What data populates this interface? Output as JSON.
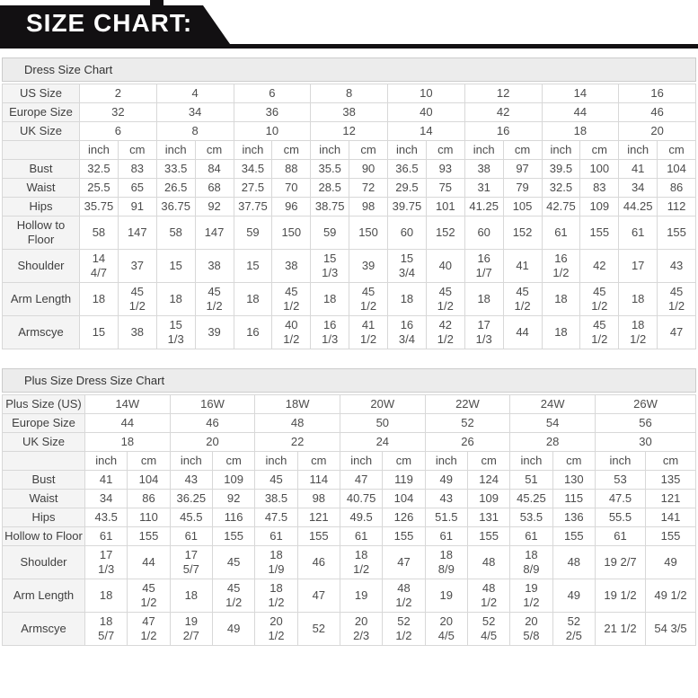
{
  "banner": {
    "title": "SIZE CHART:"
  },
  "tables": [
    {
      "title": "Dress Size Chart",
      "unit_headers": [
        "inch",
        "cm"
      ],
      "size_rows": [
        {
          "label": "US Size",
          "values": [
            "2",
            "4",
            "6",
            "8",
            "10",
            "12",
            "14",
            "16"
          ]
        },
        {
          "label": "Europe Size",
          "values": [
            "32",
            "34",
            "36",
            "38",
            "40",
            "42",
            "44",
            "46"
          ]
        },
        {
          "label": "UK Size",
          "values": [
            "6",
            "8",
            "10",
            "12",
            "14",
            "16",
            "18",
            "20"
          ]
        }
      ],
      "measure_rows": [
        {
          "label": "Bust",
          "values": [
            "32.5",
            "83",
            "33.5",
            "84",
            "34.5",
            "88",
            "35.5",
            "90",
            "36.5",
            "93",
            "38",
            "97",
            "39.5",
            "100",
            "41",
            "104"
          ]
        },
        {
          "label": "Waist",
          "values": [
            "25.5",
            "65",
            "26.5",
            "68",
            "27.5",
            "70",
            "28.5",
            "72",
            "29.5",
            "75",
            "31",
            "79",
            "32.5",
            "83",
            "34",
            "86"
          ]
        },
        {
          "label": "Hips",
          "values": [
            "35.75",
            "91",
            "36.75",
            "92",
            "37.75",
            "96",
            "38.75",
            "98",
            "39.75",
            "101",
            "41.25",
            "105",
            "42.75",
            "109",
            "44.25",
            "112"
          ]
        },
        {
          "label": "Hollow to Floor",
          "values": [
            "58",
            "147",
            "58",
            "147",
            "59",
            "150",
            "59",
            "150",
            "60",
            "152",
            "60",
            "152",
            "61",
            "155",
            "61",
            "155"
          ]
        },
        {
          "label": "Shoulder",
          "values": [
            "14 4/7",
            "37",
            "15",
            "38",
            "15",
            "38",
            "15 1/3",
            "39",
            "15 3/4",
            "40",
            "16 1/7",
            "41",
            "16 1/2",
            "42",
            "17",
            "43"
          ]
        },
        {
          "label": "Arm Length",
          "values": [
            "18",
            "45 1/2",
            "18",
            "45 1/2",
            "18",
            "45 1/2",
            "18",
            "45 1/2",
            "18",
            "45 1/2",
            "18",
            "45 1/2",
            "18",
            "45 1/2",
            "18",
            "45 1/2"
          ]
        },
        {
          "label": "Armscye",
          "values": [
            "15",
            "38",
            "15 1/3",
            "39",
            "16",
            "40 1/2",
            "16 1/3",
            "41 1/2",
            "16 3/4",
            "42 1/2",
            "17 1/3",
            "44",
            "18",
            "45 1/2",
            "18 1/2",
            "47"
          ]
        }
      ]
    },
    {
      "title": "Plus Size Dress Size Chart",
      "unit_headers": [
        "inch",
        "cm"
      ],
      "size_rows": [
        {
          "label": "Plus Size (US)",
          "values": [
            "14W",
            "16W",
            "18W",
            "20W",
            "22W",
            "24W",
            "26W"
          ]
        },
        {
          "label": "Europe Size",
          "values": [
            "44",
            "46",
            "48",
            "50",
            "52",
            "54",
            "56"
          ]
        },
        {
          "label": "UK Size",
          "values": [
            "18",
            "20",
            "22",
            "24",
            "26",
            "28",
            "30"
          ]
        }
      ],
      "measure_rows": [
        {
          "label": "Bust",
          "values": [
            "41",
            "104",
            "43",
            "109",
            "45",
            "114",
            "47",
            "119",
            "49",
            "124",
            "51",
            "130",
            "53",
            "135"
          ]
        },
        {
          "label": "Waist",
          "values": [
            "34",
            "86",
            "36.25",
            "92",
            "38.5",
            "98",
            "40.75",
            "104",
            "43",
            "109",
            "45.25",
            "115",
            "47.5",
            "121"
          ]
        },
        {
          "label": "Hips",
          "values": [
            "43.5",
            "110",
            "45.5",
            "116",
            "47.5",
            "121",
            "49.5",
            "126",
            "51.5",
            "131",
            "53.5",
            "136",
            "55.5",
            "141"
          ]
        },
        {
          "label": "Hollow to Floor",
          "values": [
            "61",
            "155",
            "61",
            "155",
            "61",
            "155",
            "61",
            "155",
            "61",
            "155",
            "61",
            "155",
            "61",
            "155"
          ]
        },
        {
          "label": "Shoulder",
          "values": [
            "17 1/3",
            "44",
            "17 5/7",
            "45",
            "18 1/9",
            "46",
            "18 1/2",
            "47",
            "18 8/9",
            "48",
            "18 8/9",
            "48",
            "19 2/7",
            "49"
          ]
        },
        {
          "label": "Arm Length",
          "values": [
            "18",
            "45 1/2",
            "18",
            "45 1/2",
            "18 1/2",
            "47",
            "19",
            "48 1/2",
            "19",
            "48 1/2",
            "19 1/2",
            "49",
            "19 1/2",
            "49 1/2"
          ]
        },
        {
          "label": "Armscye",
          "values": [
            "18 5/7",
            "47 1/2",
            "19 2/7",
            "49",
            "20 1/2",
            "52",
            "20 2/3",
            "52 1/2",
            "20 4/5",
            "52 4/5",
            "20 5/8",
            "52 2/5",
            "21 1/2",
            "54 3/5"
          ]
        }
      ]
    }
  ]
}
